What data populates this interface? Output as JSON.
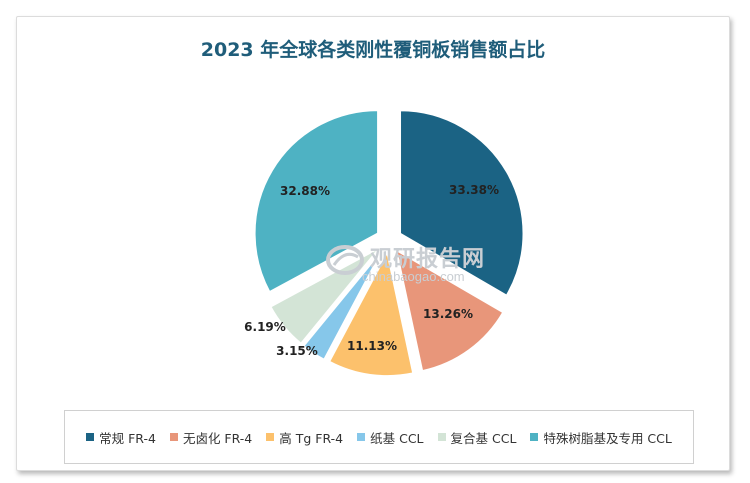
{
  "chart_data": {
    "type": "pie",
    "title": "2023 年全球各类刚性覆铜板销售额占比",
    "categories": [
      "常规 FR-4",
      "无卤化 FR-4",
      "高 Tg FR-4",
      "纸基 CCL",
      "复合基 CCL",
      "特殊树脂基及专用 CCL"
    ],
    "values": [
      33.38,
      13.26,
      11.13,
      3.15,
      6.19,
      32.88
    ],
    "labels": [
      "33.38%",
      "13.26%",
      "11.13%",
      "3.15%",
      "6.19%",
      "32.88%"
    ],
    "colors": [
      "#1b6384",
      "#e8967a",
      "#fcc16c",
      "#86c7ea",
      "#d3e4d6",
      "#4eb2c3"
    ],
    "legend_position": "bottom"
  },
  "watermark": {
    "main": "观研报告网",
    "sub": "chinabaogao.com"
  }
}
